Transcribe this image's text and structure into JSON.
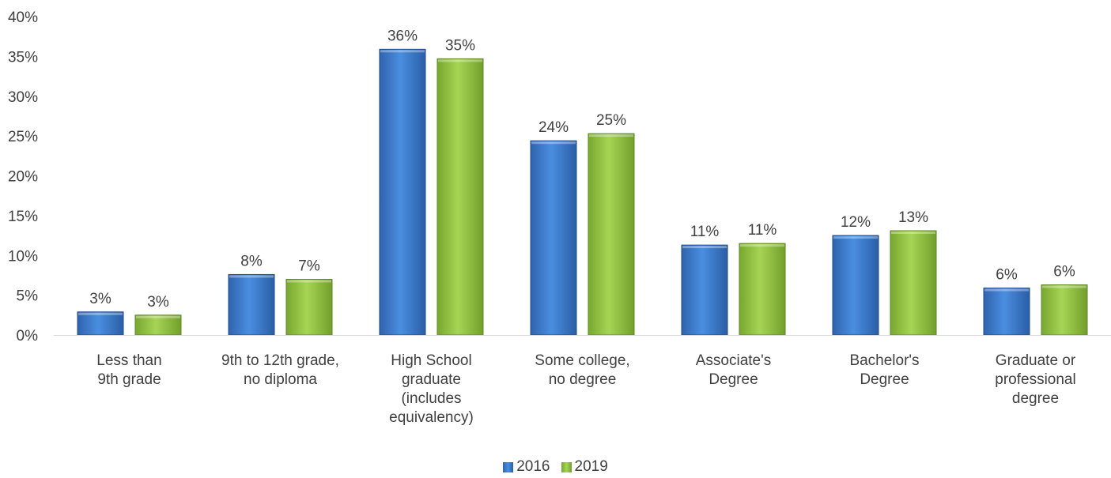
{
  "chart_data": {
    "type": "bar",
    "categories": [
      [
        "Less than",
        "9th grade"
      ],
      [
        "9th to 12th grade,",
        "no diploma"
      ],
      [
        "High School",
        "graduate",
        "(includes",
        "equivalency)"
      ],
      [
        "Some college,",
        "no degree"
      ],
      [
        "Associate's",
        "Degree"
      ],
      [
        "Bachelor's",
        "Degree"
      ],
      [
        "Graduate or",
        "professional",
        "degree"
      ]
    ],
    "series": [
      {
        "name": "2016",
        "color": "#3b78c9",
        "values": [
          2.9,
          7.6,
          35.9,
          24.4,
          11.3,
          12.5,
          5.9
        ],
        "labels": [
          "3%",
          "8%",
          "36%",
          "24%",
          "11%",
          "12%",
          "6%"
        ]
      },
      {
        "name": "2019",
        "color": "#8fc33c",
        "values": [
          2.5,
          7.0,
          34.7,
          25.3,
          11.5,
          13.1,
          6.3
        ],
        "labels": [
          "3%",
          "7%",
          "35%",
          "25%",
          "11%",
          "13%",
          "6%"
        ]
      }
    ],
    "y_ticks": [
      "0%",
      "5%",
      "10%",
      "15%",
      "20%",
      "25%",
      "30%",
      "35%",
      "40%"
    ],
    "ylim": [
      0,
      40
    ],
    "grid": false,
    "legend_position": "bottom-center",
    "title": "",
    "xlabel": "",
    "ylabel": ""
  }
}
